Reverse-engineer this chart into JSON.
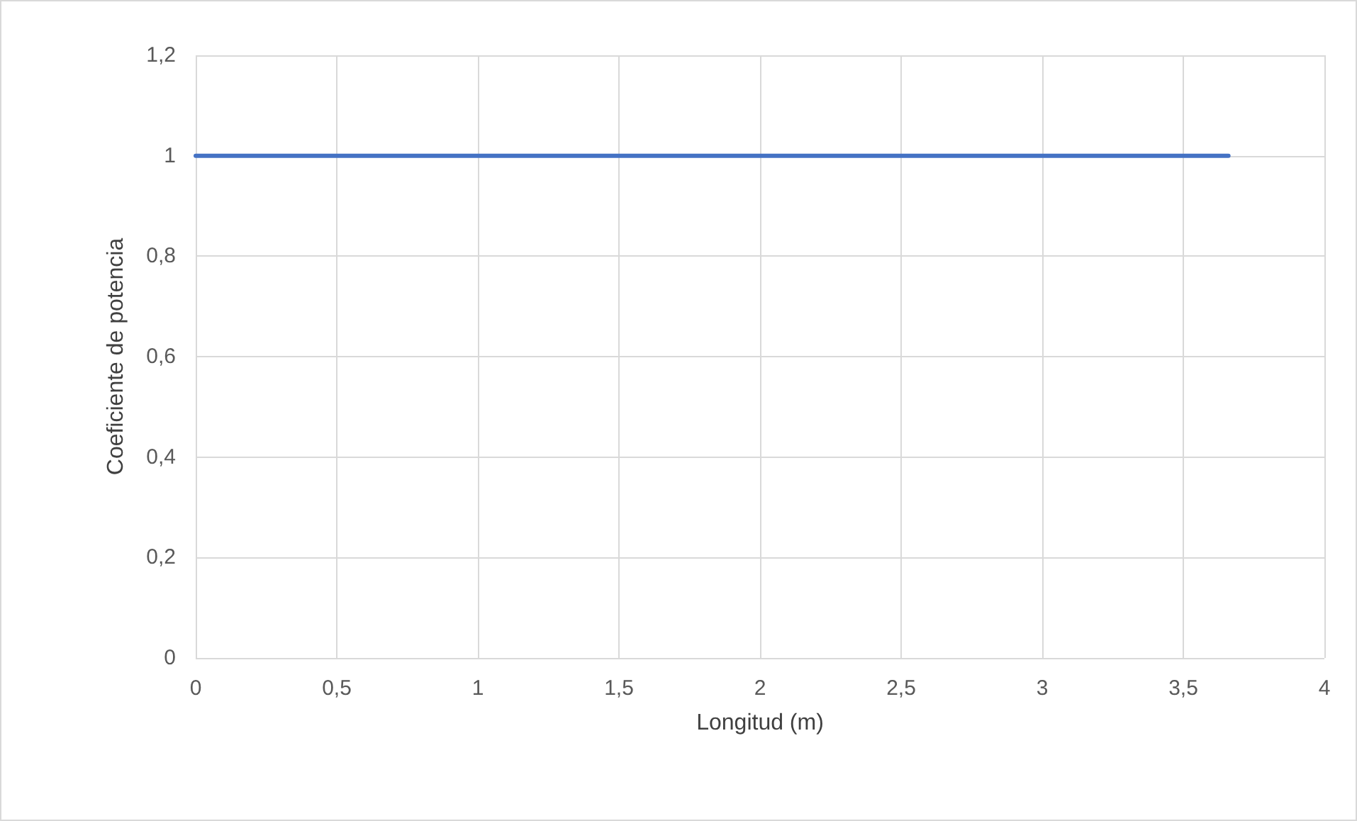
{
  "chart_data": {
    "type": "line",
    "xlabel": "Longitud (m)",
    "ylabel": "Coeficiente de potencia",
    "x": [
      0,
      3.66
    ],
    "series": [
      {
        "color": "#4472c4",
        "values": [
          1,
          1
        ]
      }
    ],
    "xlim": [
      0,
      4
    ],
    "xticks": [
      0,
      {
        "value": 0.5,
        "label": "0,5"
      },
      1,
      {
        "value": 1.5,
        "label": "1,5"
      },
      2,
      {
        "value": 2.5,
        "label": "2,5"
      },
      3,
      {
        "value": 3.5,
        "label": "3,5"
      },
      4
    ],
    "ylim": [
      0,
      1.2
    ],
    "yticks": [
      0,
      {
        "value": 0.2,
        "label": "0,2"
      },
      {
        "value": 0.4,
        "label": "0,4"
      },
      {
        "value": 0.6,
        "label": "0,6"
      },
      {
        "value": 0.8,
        "label": "0,8"
      },
      1,
      {
        "value": 1.2,
        "label": "1,2"
      }
    ],
    "grid": true,
    "marker": "none",
    "line_style": "solid"
  }
}
